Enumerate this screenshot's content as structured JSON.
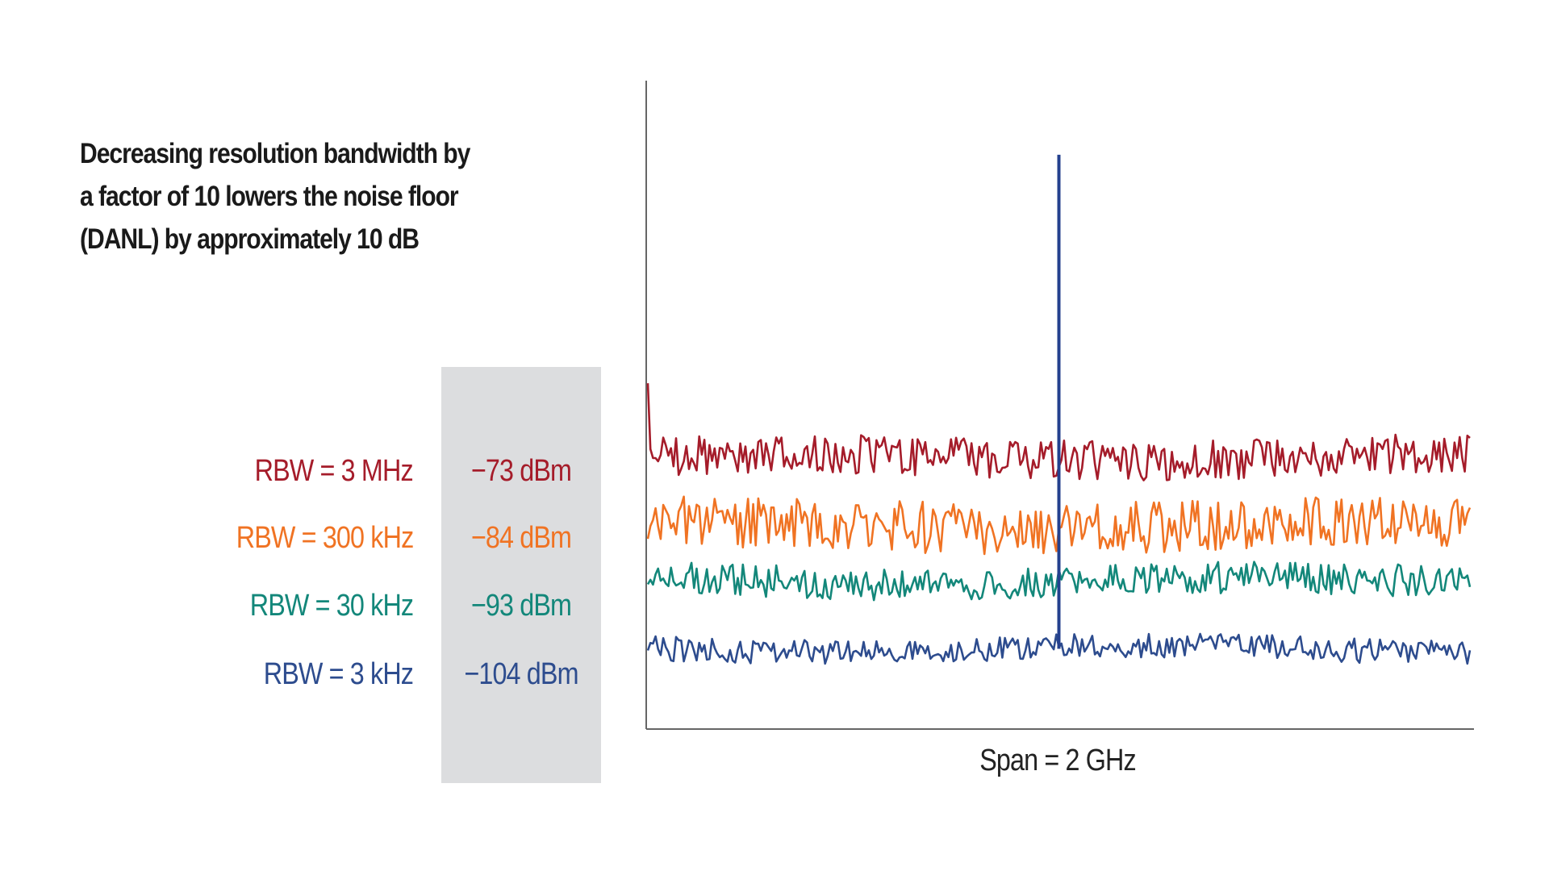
{
  "chart_data": {
    "type": "line",
    "title": "Decreasing resolution bandwidth by a factor of 10 lowers the noise floor (DANL) by approximately 10 dB",
    "title_lines": [
      "Decreasing resolution bandwidth by",
      "a factor of 10 lowers the noise floor",
      "(DANL) by approximately 10 dB"
    ],
    "xlabel": "Span = 2 GHz",
    "ylabel": "",
    "xlim": [
      0,
      2
    ],
    "ylim": [
      -117,
      -12
    ],
    "grid": false,
    "legend_placement": "left",
    "signal": {
      "x_ghz": 1.0,
      "peak_dbm": -24,
      "color": "#24408e"
    },
    "series": [
      {
        "name": "RBW = 3 MHz",
        "label": "RBW = 3 MHz",
        "value_label": "−73 dBm",
        "noise_floor_dbm": -73,
        "noise_amplitude_db": 3.2,
        "color": "#a51c2a",
        "seed": 11
      },
      {
        "name": "RBW = 300 kHz",
        "label": "RBW = 300 kHz",
        "value_label": "−84 dBm",
        "noise_floor_dbm": -84,
        "noise_amplitude_db": 4.2,
        "color": "#f07323",
        "seed": 23
      },
      {
        "name": "RBW = 30 kHz",
        "label": "RBW = 30 kHz",
        "value_label": "−93 dBm",
        "noise_floor_dbm": -93,
        "noise_amplitude_db": 2.6,
        "color": "#13877a",
        "seed": 37
      },
      {
        "name": "RBW = 3 kHz",
        "label": "RBW = 3 kHz",
        "value_label": "−104 dBm",
        "noise_floor_dbm": -104,
        "noise_amplitude_db": 2.0,
        "color": "#2d4c8e",
        "seed": 53
      }
    ]
  }
}
